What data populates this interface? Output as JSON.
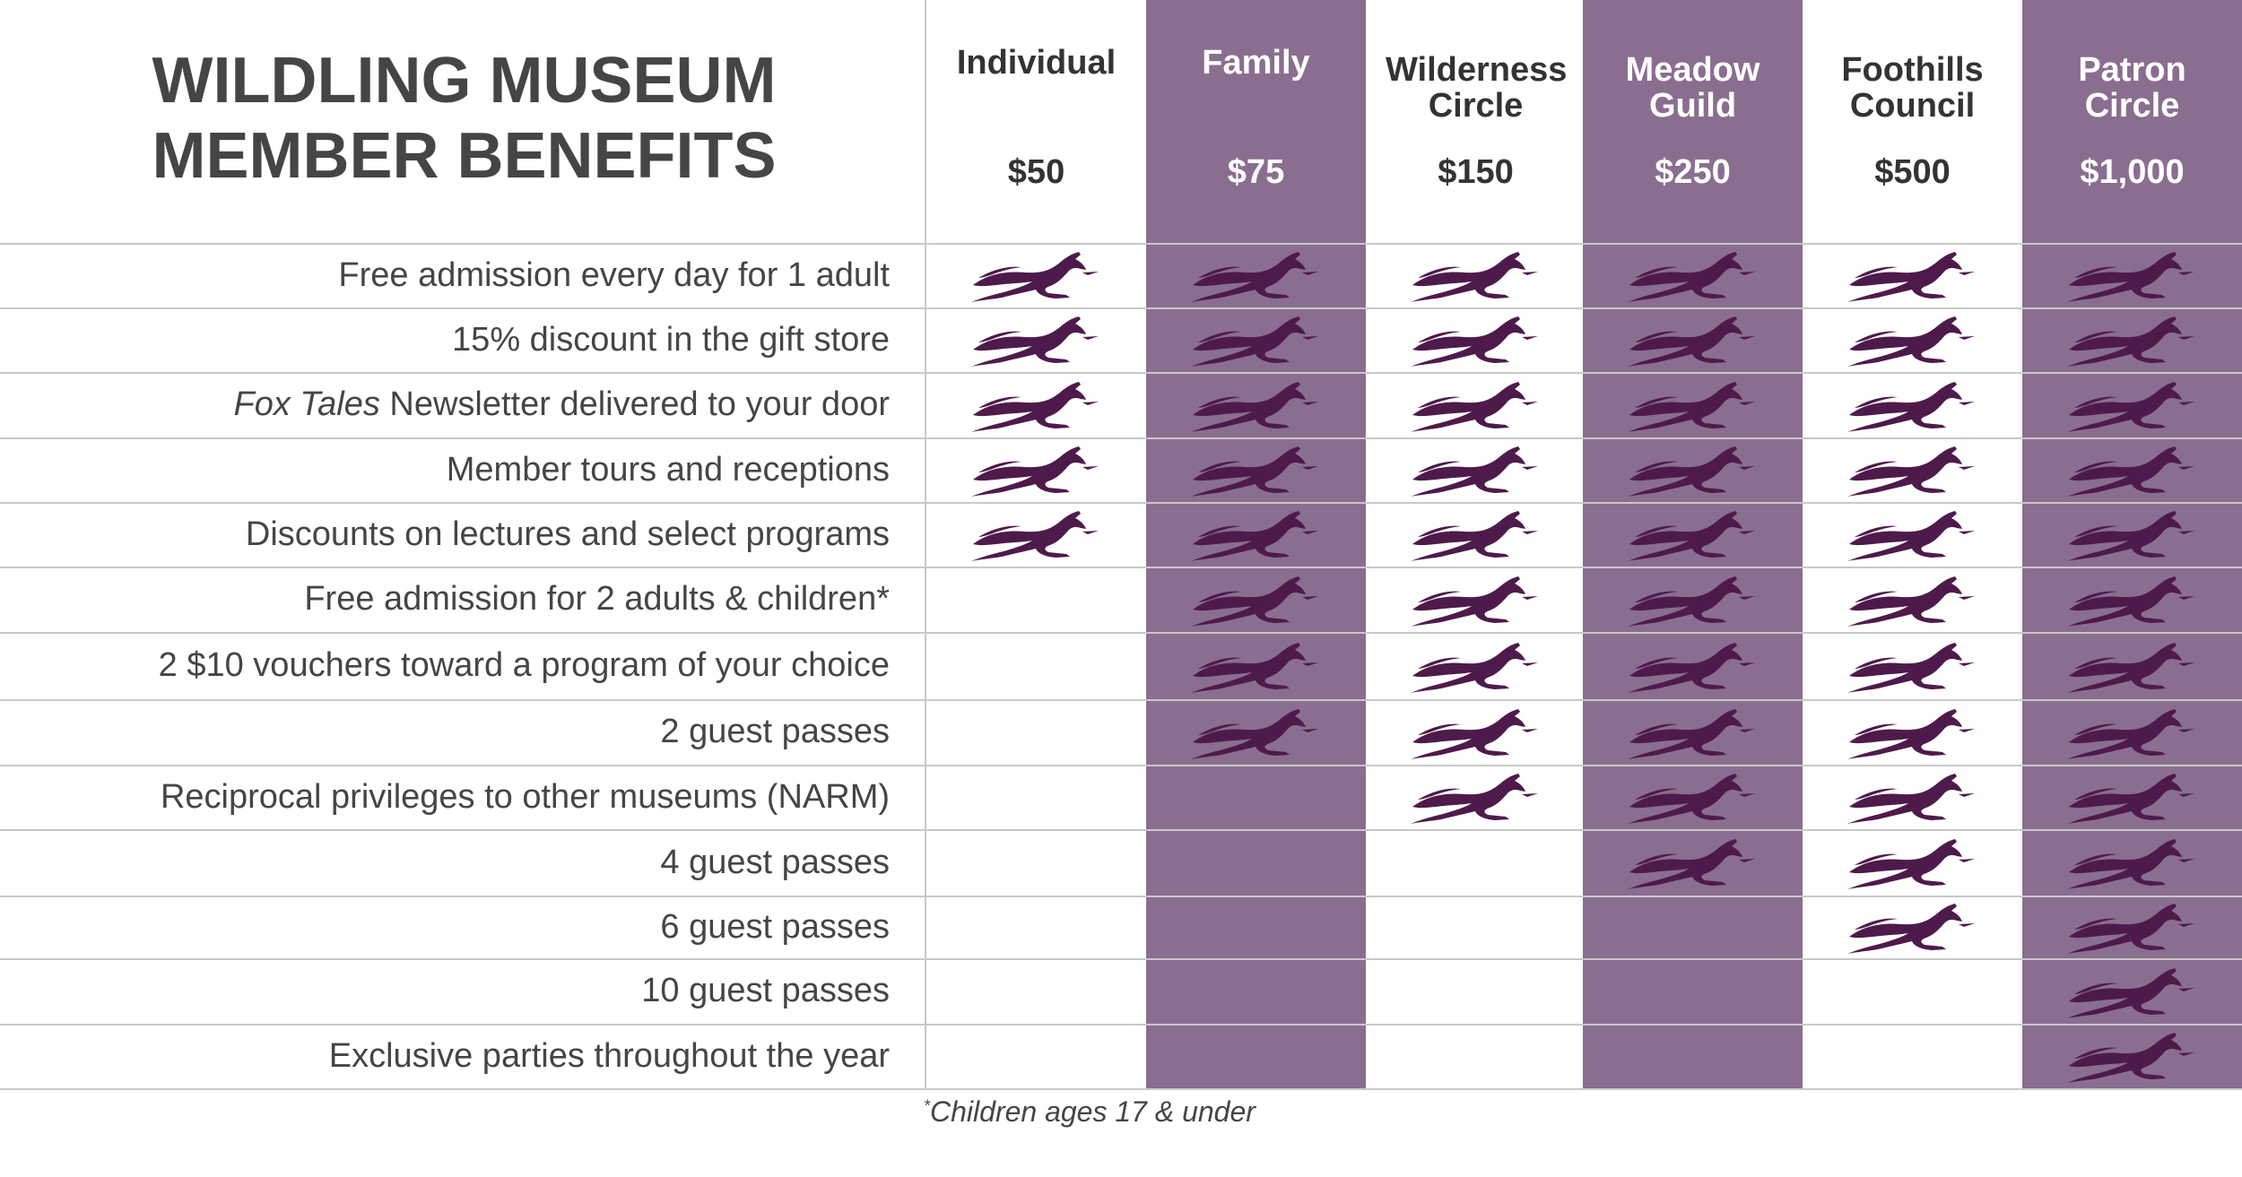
{
  "title_lines": [
    "WILDLING MUSEUM",
    "MEMBER BENEFITS"
  ],
  "colors": {
    "accent_purple": "#8a6e90",
    "fox_mark": "#4e1a4b",
    "text": "#454545",
    "rule": "#c8c8c8"
  },
  "tiers": [
    {
      "name": "Individual",
      "price": "$50",
      "shaded": false
    },
    {
      "name": "Family",
      "price": "$75",
      "shaded": true
    },
    {
      "name": "Wilderness Circle",
      "price": "$150",
      "shaded": false
    },
    {
      "name": "Meadow Guild",
      "price": "$250",
      "shaded": true
    },
    {
      "name": "Foothills Council",
      "price": "$500",
      "shaded": false
    },
    {
      "name": "Patron Circle",
      "price": "$1,000",
      "shaded": true
    }
  ],
  "benefits": [
    {
      "label": "Free admission every day for 1 adult",
      "included": [
        true,
        true,
        true,
        true,
        true,
        true
      ]
    },
    {
      "label": "15% discount in the gift store",
      "included": [
        true,
        true,
        true,
        true,
        true,
        true
      ]
    },
    {
      "label_italic": "Fox Tales",
      "label": " Newsletter delivered to your door",
      "included": [
        true,
        true,
        true,
        true,
        true,
        true
      ]
    },
    {
      "label": "Member tours and receptions",
      "included": [
        true,
        true,
        true,
        true,
        true,
        true
      ]
    },
    {
      "label": "Discounts on lectures and select programs",
      "included": [
        true,
        true,
        true,
        true,
        true,
        true
      ]
    },
    {
      "label": "Free admission for 2 adults & children*",
      "included": [
        false,
        true,
        true,
        true,
        true,
        true
      ]
    },
    {
      "label": "2 $10 vouchers toward a program of your choice",
      "included": [
        false,
        true,
        true,
        true,
        true,
        true
      ]
    },
    {
      "label": "2 guest passes",
      "included": [
        false,
        true,
        true,
        true,
        true,
        true
      ]
    },
    {
      "label": "Reciprocal privileges to other museums (NARM)",
      "included": [
        false,
        false,
        true,
        true,
        true,
        true
      ]
    },
    {
      "label": "4 guest passes",
      "included": [
        false,
        false,
        false,
        true,
        true,
        true
      ]
    },
    {
      "label": "6 guest passes",
      "included": [
        false,
        false,
        false,
        false,
        true,
        true
      ]
    },
    {
      "label": "10 guest passes",
      "included": [
        false,
        false,
        false,
        false,
        false,
        true
      ]
    },
    {
      "label": "Exclusive parties throughout the year",
      "included": [
        false,
        false,
        false,
        false,
        false,
        true
      ]
    }
  ],
  "check_icon": "fox-icon",
  "footnote": {
    "marker": "*",
    "text": "Children ages 17 & under"
  }
}
